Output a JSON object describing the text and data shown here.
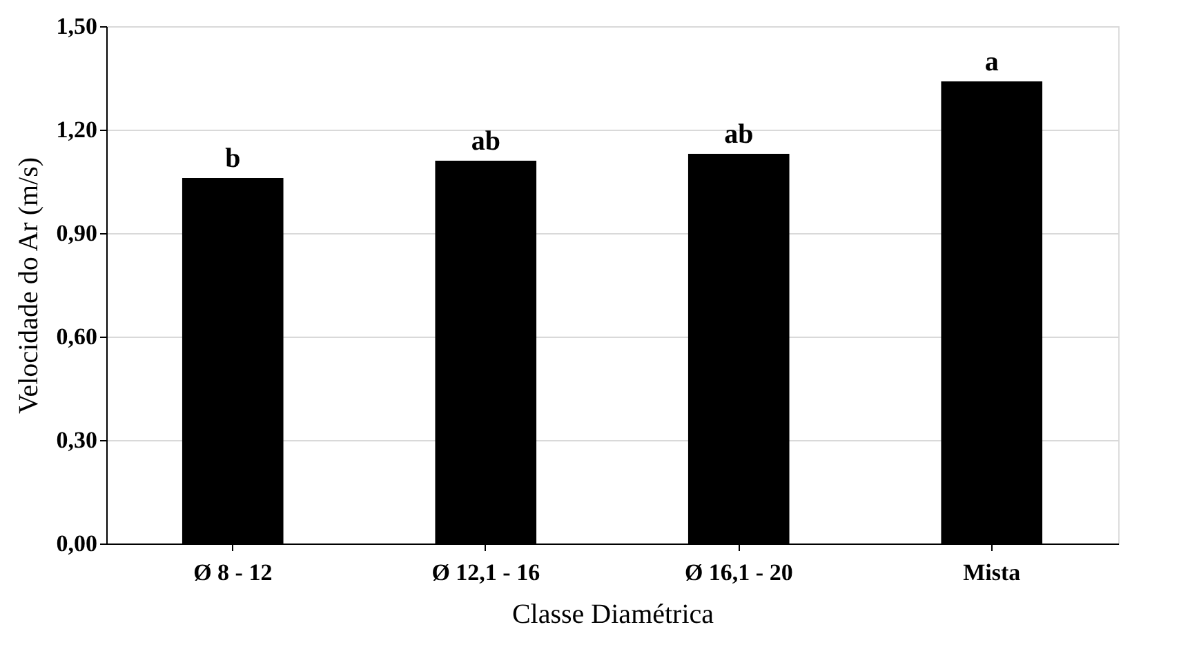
{
  "chart_data": {
    "type": "bar",
    "xlabel": "Classe Diamétrica",
    "ylabel": "Velocidade do Ar (m/s)",
    "categories": [
      "Ø 8 - 12",
      "Ø 12,1 - 16",
      "Ø 16,1 - 20",
      "Mista"
    ],
    "values": [
      1.06,
      1.11,
      1.13,
      1.34
    ],
    "color": "#000000",
    "ylim": [
      0,
      1.5
    ],
    "yticks": [
      {
        "value": 0,
        "label": "0,00"
      },
      {
        "value": 0.3,
        "label": "0,30"
      },
      {
        "value": 0.6,
        "label": "0,60"
      },
      {
        "value": 0.9,
        "label": "0,90"
      },
      {
        "value": 1.2,
        "label": "1,20"
      },
      {
        "value": 1.5,
        "label": "1,50"
      }
    ],
    "grid": "y",
    "annotations": [
      {
        "text": "b",
        "x": "Ø 8 - 12",
        "y": 1.06
      },
      {
        "text": "ab",
        "x": "Ø 12,1 - 16",
        "y": 1.11
      },
      {
        "text": "ab",
        "x": "Ø 16,1 - 20",
        "y": 1.13
      },
      {
        "text": "a",
        "x": "Mista",
        "y": 1.34
      }
    ]
  }
}
